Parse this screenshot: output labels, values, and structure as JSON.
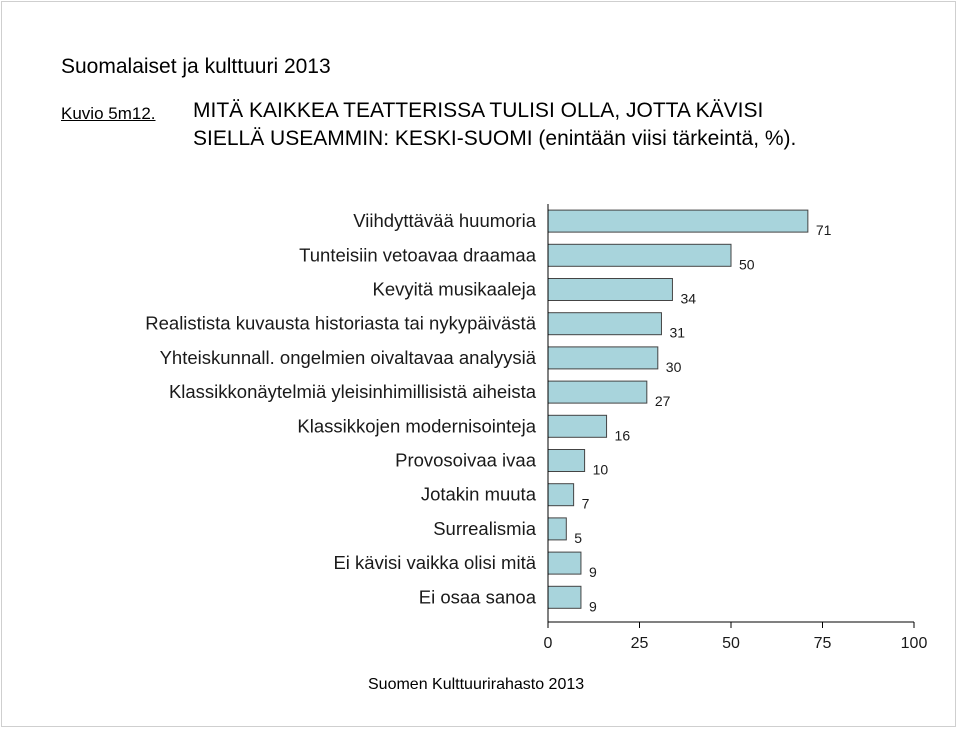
{
  "header": {
    "text": "Suomalaiset ja kulttuuri 2013"
  },
  "figure": {
    "label": "Kuvio 5m12.",
    "title_line1": "MITÄ KAIKKEA TEATTERISSA TULISI OLLA, JOTTA KÄVISI",
    "title_line2": "SIELLÄ USEAMMIN: KESKI-SUOMI (enintään viisi tärkeintä, %)."
  },
  "source": "Suomen Kulttuurirahasto 2013",
  "colors": {
    "bar_fill": "#a8d4dc",
    "bar_stroke": "#444444",
    "axis": "#000000"
  },
  "chart_data": {
    "type": "bar",
    "orientation": "horizontal",
    "categories": [
      "Viihdyttävää huumoria",
      "Tunteisiin vetoavaa draamaa",
      "Kevyitä musikaaleja",
      "Realistista kuvausta historiasta tai nykypäivästä",
      "Yhteiskunnall. ongelmien oivaltavaa analyysiä",
      "Klassikkonäytelmiä yleisinhimillisistä aiheista",
      "Klassikkojen modernisointeja",
      "Provosoivaa ivaa",
      "Jotakin muuta",
      "Surrealismia",
      "Ei kävisi vaikka olisi mitä",
      "Ei osaa sanoa"
    ],
    "values": [
      71,
      50,
      34,
      31,
      30,
      27,
      16,
      10,
      7,
      5,
      9,
      9
    ],
    "xlim": [
      0,
      100
    ],
    "xticks": [
      0,
      25,
      50,
      75,
      100
    ],
    "grid": false,
    "data_labels": true
  }
}
